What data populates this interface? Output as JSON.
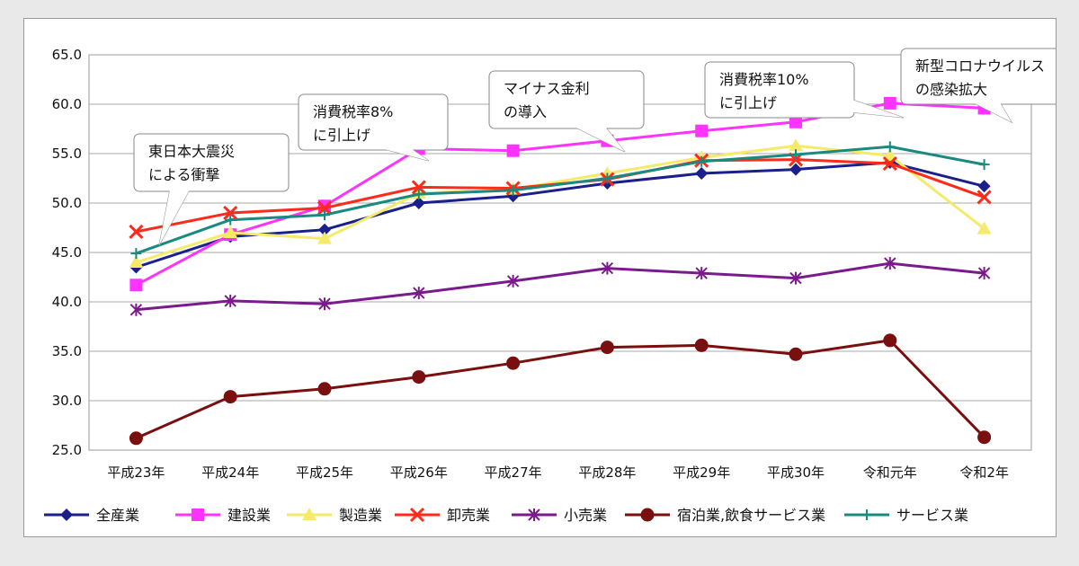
{
  "chart_data": {
    "type": "line",
    "categories": [
      "平成23年",
      "平成24年",
      "平成25年",
      "平成26年",
      "平成27年",
      "平成28年",
      "平成29年",
      "平成30年",
      "令和元年",
      "令和2年"
    ],
    "ylim": [
      25.0,
      65.0
    ],
    "yticks": [
      "65.0",
      "60.0",
      "55.0",
      "50.0",
      "45.0",
      "40.0",
      "35.0",
      "30.0",
      "25.0"
    ],
    "grid": "horizontal",
    "legend_position": "bottom",
    "series": [
      {
        "name": "全産業",
        "color": "#1a1f8c",
        "marker": "diamond",
        "values": [
          43.5,
          46.6,
          47.3,
          50.0,
          50.7,
          52.0,
          53.0,
          53.4,
          54.1,
          51.7
        ]
      },
      {
        "name": "建設業",
        "color": "#ff33ff",
        "marker": "square",
        "values": [
          41.7,
          46.8,
          49.7,
          55.5,
          55.3,
          56.3,
          57.3,
          58.2,
          60.1,
          59.6
        ]
      },
      {
        "name": "製造業",
        "color": "#f5ea6a",
        "marker": "triangle",
        "values": [
          44.0,
          47.0,
          46.4,
          51.0,
          51.4,
          53.0,
          54.6,
          55.8,
          54.8,
          47.4
        ]
      },
      {
        "name": "卸売業",
        "color": "#ff2a1a",
        "marker": "x",
        "values": [
          47.1,
          49.0,
          49.5,
          51.6,
          51.5,
          52.4,
          54.3,
          54.4,
          54.0,
          50.6
        ]
      },
      {
        "name": "小売業",
        "color": "#7a1a8c",
        "marker": "star",
        "values": [
          39.2,
          40.1,
          39.8,
          40.9,
          42.1,
          43.4,
          42.9,
          42.4,
          43.9,
          42.9
        ]
      },
      {
        "name": "宿泊業,飲食サービス業",
        "color": "#7a0f0f",
        "marker": "circle",
        "values": [
          26.2,
          30.4,
          31.2,
          32.4,
          33.8,
          35.4,
          35.6,
          34.7,
          36.1,
          26.3
        ]
      },
      {
        "name": "サービス業",
        "color": "#1a8a80",
        "marker": "plus",
        "values": [
          44.9,
          48.3,
          48.8,
          50.9,
          51.3,
          52.5,
          54.2,
          54.9,
          55.7,
          53.9
        ]
      }
    ],
    "annotations": [
      {
        "lines": [
          "東日本大震災",
          "による衝撃"
        ],
        "category_index": 0,
        "value": 47.1
      },
      {
        "lines": [
          "消費税率8%",
          "に引上げ"
        ],
        "category_index": 3,
        "value": 55.5
      },
      {
        "lines": [
          "マイナス金利",
          "の導入"
        ],
        "category_index": 5,
        "value": 56.3
      },
      {
        "lines": [
          "消費税率10%",
          "に引上げ"
        ],
        "category_index": 8,
        "value": 60.1
      },
      {
        "lines": [
          "新型コロナウイルス",
          "の感染拡大"
        ],
        "category_index": 9,
        "value": 59.6
      }
    ]
  }
}
